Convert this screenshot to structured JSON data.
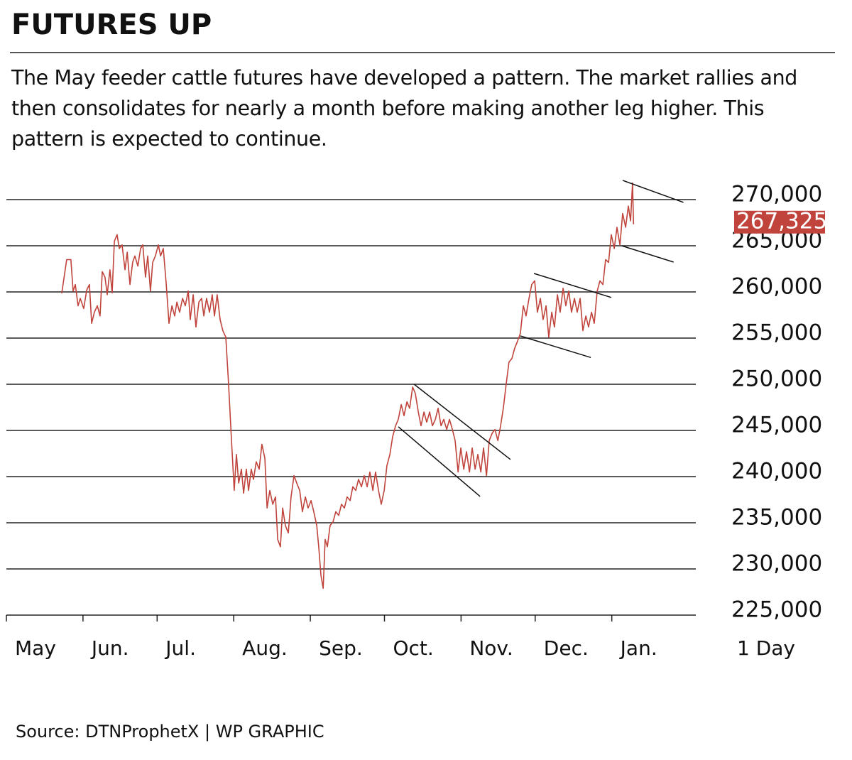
{
  "chart_data": {
    "type": "line",
    "title": "FUTURES UP",
    "subtitle": "The May feeder cattle futures have developed a pattern. The market rallies and then consolidates for nearly a month before making another leg higher. This pattern is expected to continue.",
    "source": "Source: DTNProphetX | WP GRAPHIC",
    "x_note": "1 Day",
    "xlim": [
      0,
      279
    ],
    "xticks": [
      {
        "value": 0,
        "label": "May"
      },
      {
        "value": 31,
        "label": "Jun."
      },
      {
        "value": 61,
        "label": "Jul."
      },
      {
        "value": 92,
        "label": "Aug."
      },
      {
        "value": 123,
        "label": "Sep."
      },
      {
        "value": 153,
        "label": "Oct."
      },
      {
        "value": 184,
        "label": "Nov."
      },
      {
        "value": 214,
        "label": "Dec."
      },
      {
        "value": 245,
        "label": "Jan."
      }
    ],
    "ylim": [
      225000,
      272000
    ],
    "yticks": [
      {
        "value": 225000,
        "label": "225,000"
      },
      {
        "value": 230000,
        "label": "230,000"
      },
      {
        "value": 235000,
        "label": "235,000"
      },
      {
        "value": 240000,
        "label": "240,000"
      },
      {
        "value": 245000,
        "label": "245,000"
      },
      {
        "value": 250000,
        "label": "250,000"
      },
      {
        "value": 255000,
        "label": "255,000"
      },
      {
        "value": 260000,
        "label": "260,000"
      },
      {
        "value": 265000,
        "label": "265,000"
      },
      {
        "value": 270000,
        "label": "270,000"
      }
    ],
    "grid": true,
    "last_price": {
      "value": 267325,
      "label": "267,325"
    },
    "trend_lines": [
      {
        "x": [
          165,
          204
        ],
        "y": [
          250000,
          241850
        ]
      },
      {
        "x": [
          158.6,
          191.7
        ],
        "y": [
          245400,
          237850
        ]
      },
      {
        "x": [
          213.5,
          244.8
        ],
        "y": [
          262000,
          259400
        ]
      },
      {
        "x": [
          208,
          236.5
        ],
        "y": [
          255230,
          252900
        ]
      },
      {
        "x": [
          249.4,
          274
        ],
        "y": [
          272080,
          269700
        ]
      },
      {
        "x": [
          249,
          270
        ],
        "y": [
          265000,
          263230
        ]
      }
    ],
    "series": [
      {
        "name": "May feeder cattle futures",
        "color": "#c0443c",
        "x": [
          22.4,
          24.4,
          26.1,
          27,
          27.9,
          29,
          29.9,
          31.3,
          32.5,
          33.6,
          34.5,
          35.6,
          36.8,
          37.9,
          38.8,
          39.9,
          40.8,
          41.9,
          42.8,
          43.7,
          44.8,
          45.7,
          46.8,
          48,
          48.9,
          50,
          51.1,
          52,
          53.2,
          54.3,
          55.2,
          56.3,
          57.2,
          58.3,
          59.2,
          60.3,
          61.5,
          62.4,
          63.5,
          64.7,
          65.8,
          67,
          68.1,
          69,
          70.1,
          71.3,
          72.4,
          73.6,
          74.4,
          75.6,
          76.7,
          77.9,
          79,
          79.9,
          81,
          82.2,
          83.3,
          84.2,
          85.3,
          86.5,
          87.6,
          88.8,
          89.9,
          91.1,
          92.2,
          93.1,
          94,
          95.1,
          96,
          97.1,
          98,
          99.1,
          100,
          101.1,
          102.3,
          103.4,
          104.6,
          105.5,
          106.6,
          107.8,
          108.9,
          109.8,
          110.9,
          111.8,
          112.9,
          114.1,
          115.2,
          116.4,
          117.5,
          118.7,
          119.8,
          121,
          122.1,
          123.3,
          124.4,
          125.6,
          126.4,
          127.3,
          128.2,
          129,
          129.9,
          131,
          132.2,
          133.3,
          134.5,
          135.6,
          136.8,
          137.9,
          139.1,
          140.2,
          141.4,
          142.5,
          143.7,
          144.8,
          146,
          147.1,
          148.3,
          149.4,
          150.6,
          151.7,
          152.9,
          154,
          155.2,
          156.3,
          157.5,
          158.6,
          159.8,
          160.9,
          162.1,
          163.2,
          164.4,
          165.5,
          166.7,
          167.8,
          169,
          170.1,
          171.3,
          172.4,
          173.6,
          174.7,
          175.9,
          177,
          178.2,
          179.3,
          180.5,
          181.6,
          182.8,
          183.9,
          185.1,
          186.2,
          187.4,
          188.5,
          189.7,
          190.8,
          192,
          193.1,
          194.3,
          195.4,
          196.6,
          197.7,
          198.9,
          200,
          201.1,
          202.3,
          203.4,
          204.6,
          205.7,
          206.9,
          208,
          209.2,
          210.3,
          211.5,
          212.6,
          213.8,
          214.9,
          216.1,
          217.2,
          218.4,
          219.5,
          220.7,
          221.8,
          223,
          224.1,
          225.3,
          226.4,
          227.6,
          228.7,
          229.9,
          231,
          232.2,
          233.3,
          234.5,
          235.6,
          236.8,
          237.9,
          239.1,
          240.2,
          241.4,
          242.5,
          243.7,
          244.8,
          246,
          247.1,
          248.3,
          249.4,
          250.6,
          251.7,
          252.6,
          253.4,
          253.8
        ],
        "values": [
          259850,
          263500,
          263500,
          260100,
          260800,
          258500,
          259300,
          258200,
          260200,
          260800,
          256600,
          257800,
          258500,
          257400,
          262200,
          261600,
          259700,
          262400,
          259900,
          265500,
          266200,
          264700,
          265100,
          262400,
          264300,
          260800,
          263200,
          263900,
          262800,
          264700,
          265100,
          261600,
          263900,
          260100,
          263200,
          263900,
          265100,
          263900,
          264700,
          260800,
          256600,
          258500,
          257400,
          258900,
          257800,
          259300,
          258500,
          260100,
          257000,
          259700,
          256200,
          258900,
          259300,
          257400,
          259300,
          257800,
          259700,
          257400,
          259700,
          257000,
          255800,
          255100,
          250100,
          243900,
          238500,
          242400,
          239300,
          240800,
          238200,
          240800,
          238500,
          240800,
          239700,
          241600,
          240800,
          243500,
          242000,
          236600,
          238500,
          237000,
          237800,
          233200,
          232400,
          236600,
          234700,
          233900,
          237800,
          240100,
          239300,
          238500,
          236200,
          237800,
          236600,
          237400,
          236200,
          234700,
          232400,
          229300,
          227900,
          233200,
          232400,
          234700,
          235100,
          236200,
          235800,
          237000,
          236600,
          237800,
          237400,
          238900,
          238500,
          239700,
          238900,
          240100,
          238900,
          240500,
          238500,
          240500,
          238500,
          237000,
          238500,
          241200,
          242400,
          244300,
          245500,
          246200,
          247800,
          246600,
          248100,
          247400,
          249700,
          249000,
          247000,
          245500,
          247000,
          245900,
          247000,
          245500,
          246200,
          247400,
          245500,
          246200,
          245100,
          246200,
          245100,
          243900,
          240500,
          243100,
          240800,
          242700,
          240500,
          243100,
          240800,
          242400,
          240500,
          243100,
          240100,
          243900,
          244700,
          245100,
          243900,
          245500,
          247400,
          250100,
          252400,
          252800,
          253900,
          254700,
          255500,
          258500,
          257400,
          259300,
          260800,
          261200,
          257800,
          259300,
          257000,
          258500,
          255100,
          257800,
          256200,
          259700,
          257800,
          260400,
          258500,
          260100,
          257800,
          259300,
          257800,
          259300,
          255800,
          257400,
          256200,
          257800,
          256600,
          260100,
          261200,
          260800,
          263500,
          263200,
          266200,
          264700,
          267000,
          265100,
          268500,
          267000,
          269300,
          267700,
          271800,
          267325
        ]
      }
    ]
  }
}
